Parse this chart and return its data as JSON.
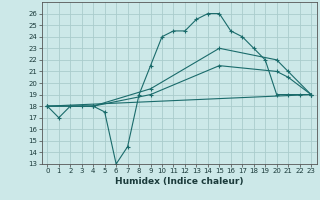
{
  "xlabel": "Humidex (Indice chaleur)",
  "xlim": [
    -0.5,
    23.5
  ],
  "ylim": [
    13,
    27
  ],
  "yticks": [
    13,
    14,
    15,
    16,
    17,
    18,
    19,
    20,
    21,
    22,
    23,
    24,
    25,
    26
  ],
  "xticks": [
    0,
    1,
    2,
    3,
    4,
    5,
    6,
    7,
    8,
    9,
    10,
    11,
    12,
    13,
    14,
    15,
    16,
    17,
    18,
    19,
    20,
    21,
    22,
    23
  ],
  "bg_color": "#cce8e8",
  "line_color": "#1a6b6b",
  "grid_color": "#aacccc",
  "lines": [
    {
      "x": [
        0,
        1,
        2,
        3,
        4,
        5,
        6,
        7,
        8,
        9,
        10,
        11,
        12,
        13,
        14,
        15,
        16,
        17,
        18,
        19,
        20,
        21,
        22,
        23
      ],
      "y": [
        18,
        17,
        18,
        18,
        18,
        17.5,
        13,
        14.5,
        19,
        21.5,
        24,
        24.5,
        24.5,
        25.5,
        26,
        26,
        24.5,
        24,
        23,
        22,
        19,
        19,
        19,
        19
      ],
      "marker": true
    },
    {
      "x": [
        0,
        4,
        9,
        15,
        20,
        21,
        23
      ],
      "y": [
        18,
        18,
        19.5,
        23,
        22,
        21,
        19
      ],
      "marker": true
    },
    {
      "x": [
        0,
        4,
        9,
        15,
        20,
        21,
        23
      ],
      "y": [
        18,
        18,
        19,
        21.5,
        21,
        20.5,
        19
      ],
      "marker": true
    },
    {
      "x": [
        0,
        23
      ],
      "y": [
        18,
        19
      ],
      "marker": false
    }
  ]
}
